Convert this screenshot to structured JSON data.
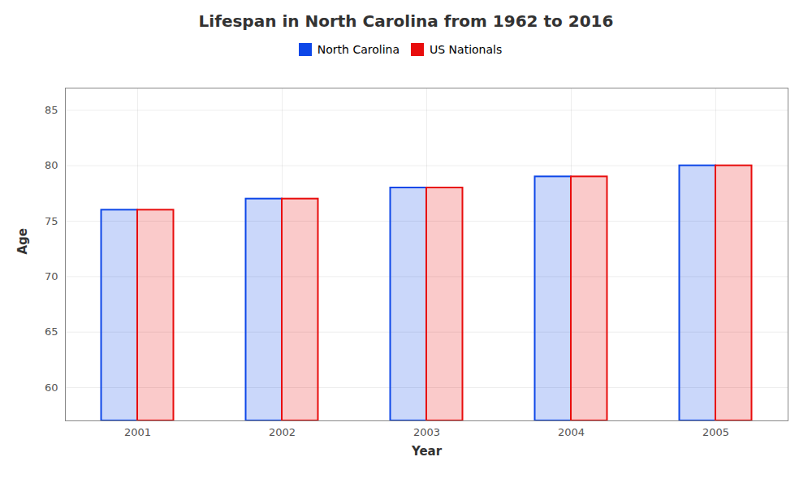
{
  "chart_data": {
    "type": "bar",
    "title": "Lifespan in North Carolina from 1962 to 2016",
    "x_label": "Year",
    "y_label": "Age",
    "categories": [
      "2001",
      "2002",
      "2003",
      "2004",
      "2005"
    ],
    "series": [
      {
        "name": "North Carolina",
        "color": "#0d47e8",
        "values": [
          76,
          77,
          78,
          79,
          80
        ]
      },
      {
        "name": "US Nationals",
        "color": "#e80d0d",
        "values": [
          76,
          77,
          78,
          79,
          80
        ]
      }
    ],
    "ylim": [
      57,
      87
    ],
    "yticks": [
      60,
      65,
      70,
      75,
      80,
      85
    ],
    "grid": true
  }
}
